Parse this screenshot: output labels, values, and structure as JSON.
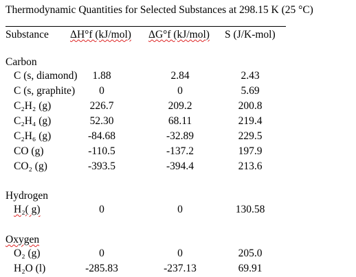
{
  "header": {
    "title": "Thermodynamic Quantities for Selected Substances at 298.15 K (25 °C)"
  },
  "table": {
    "columns": [
      "Substance",
      "ΔH°f (kJ/mol)",
      "ΔG°f (kJ/mol)",
      "S (J/K-mol)"
    ],
    "groups": [
      {
        "name": "Carbon",
        "rows": [
          [
            "C (s, diamond)",
            "1.88",
            "2.84",
            "2.43"
          ],
          [
            "C (s, graphite)",
            "0",
            "0",
            "5.69"
          ],
          [
            "C₂H₂ (g)",
            "226.7",
            "209.2",
            "200.8"
          ],
          [
            "C₂H₄ (g)",
            "52.30",
            "68.11",
            "219.4"
          ],
          [
            "C₂H₆ (g)",
            "-84.68",
            "-32.89",
            "229.5"
          ],
          [
            "CO (g)",
            "-110.5",
            "-137.2",
            "197.9"
          ],
          [
            "CO₂ (g)",
            "-393.5",
            "-394.4",
            "213.6"
          ]
        ]
      },
      {
        "name": "Hydrogen",
        "rows": [
          [
            "H₂( g)",
            "0",
            "0",
            "130.58"
          ]
        ]
      },
      {
        "name": "Oxygen",
        "rows": [
          [
            "O₂ (g)",
            "0",
            "0",
            "205.0"
          ],
          [
            "H₂O (l)",
            "-285.83",
            "-237.13",
            "69.91"
          ]
        ]
      }
    ]
  }
}
